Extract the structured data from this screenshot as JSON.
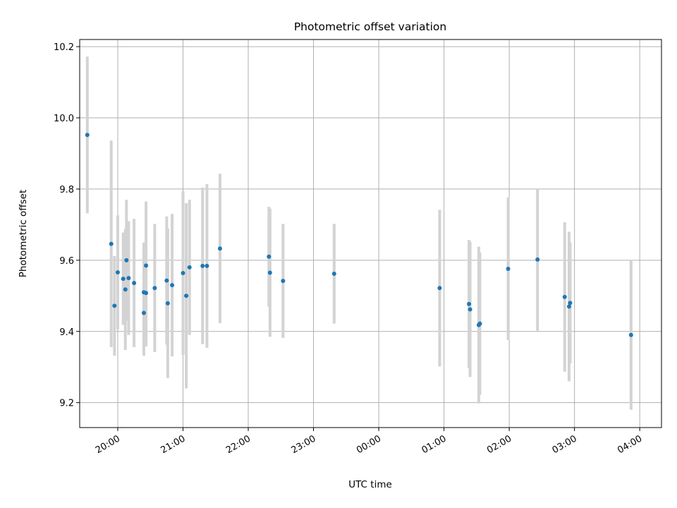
{
  "chart_data": {
    "type": "scatter",
    "title": "Photometric offset variation",
    "xlabel": "UTC time",
    "ylabel": "Photometric offset",
    "x_axis_type": "time",
    "xlim": [
      "19:25",
      "04:20"
    ],
    "ylim": [
      9.13,
      10.22
    ],
    "grid": true,
    "marker_color": "#1f77b4",
    "errorbar_color": "#d3d3d3",
    "x_ticks": [
      "20:00",
      "21:00",
      "22:00",
      "23:00",
      "00:00",
      "01:00",
      "02:00",
      "03:00",
      "04:00"
    ],
    "y_ticks": [
      "9.2",
      "9.4",
      "9.6",
      "9.8",
      "10.0",
      "10.2"
    ],
    "series": [
      {
        "points": [
          {
            "x": "19:32",
            "y": 9.952,
            "err": 0.22
          },
          {
            "x": "19:54",
            "y": 9.646,
            "err": 0.29
          },
          {
            "x": "19:57",
            "y": 9.472,
            "err": 0.14
          },
          {
            "x": "20:00",
            "y": 9.566,
            "err": 0.16
          },
          {
            "x": "20:05",
            "y": 9.548,
            "err": 0.13
          },
          {
            "x": "20:07",
            "y": 9.518,
            "err": 0.17
          },
          {
            "x": "20:08",
            "y": 9.6,
            "err": 0.17
          },
          {
            "x": "20:10",
            "y": 9.55,
            "err": 0.16
          },
          {
            "x": "20:15",
            "y": 9.536,
            "err": 0.18
          },
          {
            "x": "20:24",
            "y": 9.452,
            "err": 0.12
          },
          {
            "x": "20:24",
            "y": 9.51,
            "err": 0.14
          },
          {
            "x": "20:26",
            "y": 9.585,
            "err": 0.18
          },
          {
            "x": "20:26",
            "y": 9.508,
            "err": 0.15
          },
          {
            "x": "20:34",
            "y": 9.522,
            "err": 0.18
          },
          {
            "x": "20:45",
            "y": 9.543,
            "err": 0.18
          },
          {
            "x": "20:46",
            "y": 9.479,
            "err": 0.21
          },
          {
            "x": "20:50",
            "y": 9.53,
            "err": 0.2
          },
          {
            "x": "21:00",
            "y": 9.564,
            "err": 0.23
          },
          {
            "x": "21:03",
            "y": 9.5,
            "err": 0.26
          },
          {
            "x": "21:06",
            "y": 9.58,
            "err": 0.19
          },
          {
            "x": "21:18",
            "y": 9.584,
            "err": 0.22
          },
          {
            "x": "21:22",
            "y": 9.584,
            "err": 0.23
          },
          {
            "x": "21:34",
            "y": 9.633,
            "err": 0.21
          },
          {
            "x": "22:19",
            "y": 9.61,
            "err": 0.14
          },
          {
            "x": "22:20",
            "y": 9.565,
            "err": 0.18
          },
          {
            "x": "22:32",
            "y": 9.542,
            "err": 0.16
          },
          {
            "x": "23:19",
            "y": 9.562,
            "err": 0.14
          },
          {
            "x": "00:56",
            "y": 9.522,
            "err": 0.22
          },
          {
            "x": "01:23",
            "y": 9.477,
            "err": 0.18
          },
          {
            "x": "01:24",
            "y": 9.462,
            "err": 0.19
          },
          {
            "x": "01:32",
            "y": 9.418,
            "err": 0.22
          },
          {
            "x": "01:33",
            "y": 9.422,
            "err": 0.2
          },
          {
            "x": "01:59",
            "y": 9.576,
            "err": 0.2
          },
          {
            "x": "02:26",
            "y": 9.602,
            "err": 0.2
          },
          {
            "x": "02:51",
            "y": 9.497,
            "err": 0.21
          },
          {
            "x": "02:55",
            "y": 9.47,
            "err": 0.21
          },
          {
            "x": "02:56",
            "y": 9.48,
            "err": 0.17
          },
          {
            "x": "03:52",
            "y": 9.39,
            "err": 0.21
          }
        ]
      }
    ]
  }
}
